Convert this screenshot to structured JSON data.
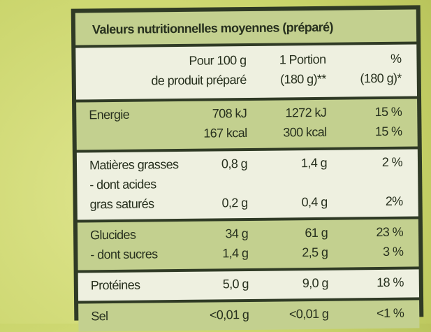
{
  "title": "Valeurs nutritionnelles moyennes (préparé)",
  "header": [
    {
      "per100": "Pour 100 g",
      "portion": "1 Portion",
      "percent": "%"
    },
    {
      "per100": "de produit préparé",
      "portion": "(180 g)**",
      "percent": "(180 g)*"
    }
  ],
  "groups": [
    {
      "lines": [
        {
          "label": "Energie",
          "per100": "708 kJ",
          "portion": "1272 kJ",
          "percent": "15 %"
        },
        {
          "per100": "167 kcal",
          "portion": "300 kcal",
          "percent": "15 %"
        }
      ]
    },
    {
      "lines": [
        {
          "label": "Matières grasses",
          "per100": "0,8 g",
          "portion": "1,4 g",
          "percent": "2 %"
        },
        {
          "label": "- dont acides"
        },
        {
          "label": "gras saturés",
          "per100": "0,2 g",
          "portion": "0,4 g",
          "percent": "2%"
        }
      ]
    },
    {
      "lines": [
        {
          "label": "Glucides",
          "per100": "34 g",
          "portion": "61 g",
          "percent": "23 %"
        },
        {
          "label": "- dont sucres",
          "per100": "1,4 g",
          "portion": "2,5 g",
          "percent": "3 %"
        }
      ]
    },
    {
      "lines": [
        {
          "label": "Protéines",
          "per100": "5,0 g",
          "portion": "9,0 g",
          "percent": "18 %"
        }
      ]
    },
    {
      "lines": [
        {
          "label": "Sel",
          "per100": "<0,01 g",
          "portion": "<0,01 g",
          "percent": "<1 %"
        }
      ]
    }
  ]
}
